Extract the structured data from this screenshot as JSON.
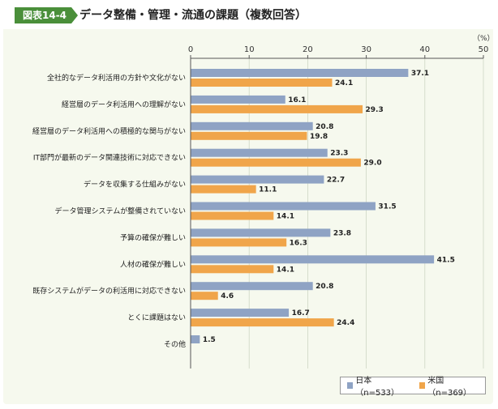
{
  "header": {
    "badge": "図表14-4",
    "title": "データ整備・管理・流通の課題（複数回答）"
  },
  "unit_label": "（%）",
  "colors": {
    "series1": "#8fa3c4",
    "series2": "#f0a54a",
    "badge": "#4a8f3a",
    "background": "#f6f9ee"
  },
  "chart_data": {
    "type": "bar",
    "orientation": "horizontal",
    "xlim": [
      0,
      50
    ],
    "xticks": [
      0,
      10,
      20,
      30,
      40,
      50
    ],
    "grid": true,
    "legend_position": "bottom-right",
    "categories": [
      "全社的なデータ利活用の方針や文化がない",
      "経営層のデータ利活用への理解がない",
      "経営層のデータ利活用への積極的な関与がない",
      "IT部門が最新のデータ関連技術に対応できない",
      "データを収集する仕組みがない",
      "データ管理システムが整備されていない",
      "予算の確保が難しい",
      "人材の確保が難しい",
      "既存システムがデータの利活用に対応できない",
      "とくに課題はない",
      "その他"
    ],
    "series": [
      {
        "name": "日本（n=533）",
        "values": [
          37.1,
          16.1,
          20.8,
          23.3,
          22.7,
          31.5,
          23.8,
          41.5,
          20.8,
          16.7,
          1.5
        ]
      },
      {
        "name": "米国（n=369）",
        "values": [
          24.1,
          29.3,
          19.8,
          29.0,
          11.1,
          14.1,
          16.3,
          14.1,
          4.6,
          24.4,
          null
        ]
      }
    ]
  }
}
